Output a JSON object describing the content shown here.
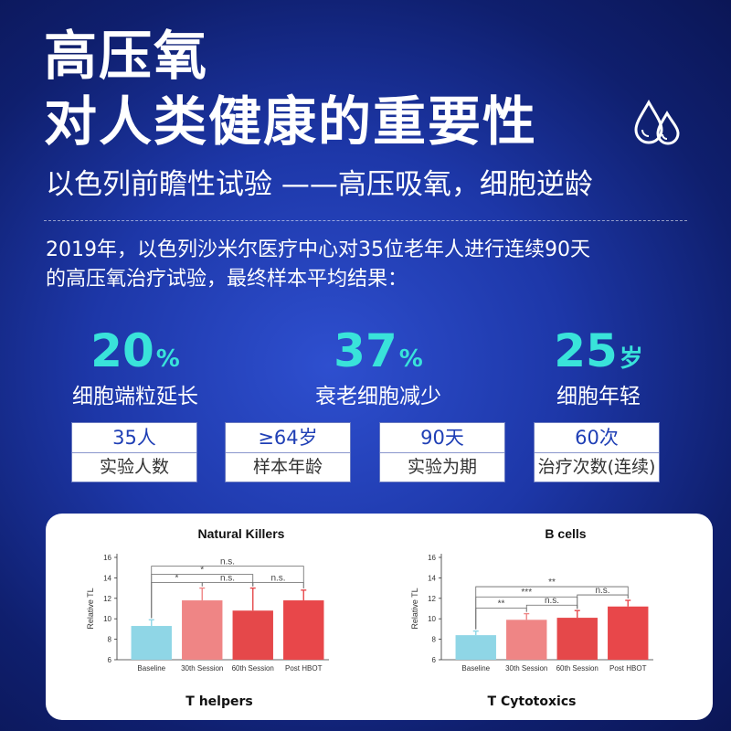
{
  "title": {
    "line1": "高压氧",
    "line2": "对人类健康的重要性"
  },
  "icon": "water-drops-icon",
  "subtitle": "以色列前瞻性试验 ——高压吸氧，细胞逆龄",
  "intro": {
    "line1": "2019年，以色列沙米尔医疗中心对35位老年人进行连续90天",
    "line2": "的高压氧治疗试验，最终样本平均结果："
  },
  "stats": [
    {
      "num": "20",
      "unit": "%",
      "label": "细胞端粒延长"
    },
    {
      "num": "37",
      "unit": "%",
      "label": "衰老细胞减少"
    },
    {
      "num": "25",
      "unit": "岁",
      "label": "细胞年轻"
    }
  ],
  "boxes": [
    {
      "value": "35人",
      "label": "实验人数"
    },
    {
      "value": "≥64岁",
      "label": "样本年龄"
    },
    {
      "value": "90天",
      "label": "实验为期"
    },
    {
      "value": "60次",
      "label": "治疗次数(连续)"
    }
  ],
  "colors": {
    "accent": "#39e3da",
    "box_text": "#1f3fb5",
    "baseline_bar": "#8fd6e6",
    "session30_bar": "#ef8585",
    "session60_bar": "#e5484a",
    "post_bar": "#e8474a"
  },
  "bottom_labels": {
    "left": "T helpers",
    "right": "T Cytotoxics"
  },
  "chart_data": [
    {
      "type": "bar",
      "title": "Natural Killers",
      "ylabel": "Relative TL",
      "categories": [
        "Baseline",
        "30th Session",
        "60th Session",
        "Post HBOT"
      ],
      "values": [
        9.3,
        11.8,
        10.8,
        11.8
      ],
      "errors": [
        0.6,
        1.2,
        2.2,
        1.0
      ],
      "ylim": [
        6,
        16
      ],
      "yticks": [
        6,
        8,
        10,
        12,
        14,
        16
      ],
      "significance": [
        {
          "from": 0,
          "to": 1,
          "label": "*"
        },
        {
          "from": 0,
          "to": 2,
          "label": "*"
        },
        {
          "from": 1,
          "to": 2,
          "label": "n.s."
        },
        {
          "from": 2,
          "to": 3,
          "label": "n.s."
        },
        {
          "from": 0,
          "to": 3,
          "label": "n.s."
        }
      ]
    },
    {
      "type": "bar",
      "title": "B cells",
      "ylabel": "Relative TL",
      "categories": [
        "Baseline",
        "30th Session",
        "60th Session",
        "Post HBOT"
      ],
      "values": [
        8.4,
        9.9,
        10.1,
        11.2
      ],
      "errors": [
        0.4,
        0.6,
        0.7,
        0.6
      ],
      "ylim": [
        6,
        16
      ],
      "yticks": [
        6,
        8,
        10,
        12,
        14,
        16
      ],
      "significance": [
        {
          "from": 0,
          "to": 1,
          "label": "**"
        },
        {
          "from": 1,
          "to": 2,
          "label": "n.s."
        },
        {
          "from": 0,
          "to": 2,
          "label": "***"
        },
        {
          "from": 2,
          "to": 3,
          "label": "n.s."
        },
        {
          "from": 0,
          "to": 3,
          "label": "**"
        }
      ]
    }
  ]
}
